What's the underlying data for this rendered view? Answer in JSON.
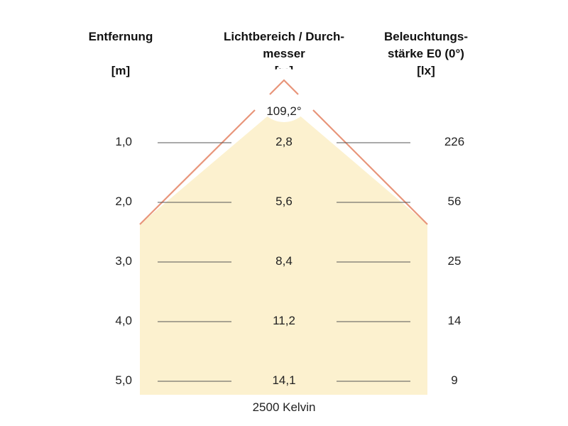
{
  "headers": {
    "distance": {
      "line1": "Entfernung",
      "line2": "",
      "unit": "[m]"
    },
    "diameter": {
      "line1": "Lichtbereich / Durch-",
      "line2": "messer",
      "unit": "[m]"
    },
    "illuminance": {
      "line1": "Beleuchtungs-",
      "line2": "stärke E0 (0°)",
      "unit": "[lx]"
    }
  },
  "beam_angle": "109,2°",
  "rows": [
    {
      "distance": "1,0",
      "diameter": "2,8",
      "illuminance": "226"
    },
    {
      "distance": "2,0",
      "diameter": "5,6",
      "illuminance": "56"
    },
    {
      "distance": "3,0",
      "diameter": "8,4",
      "illuminance": "25"
    },
    {
      "distance": "4,0",
      "diameter": "11,2",
      "illuminance": "14"
    },
    {
      "distance": "5,0",
      "diameter": "14,1",
      "illuminance": "9"
    }
  ],
  "color_temperature": "2500 Kelvin",
  "colors": {
    "beam_fill": "#fcf1cf",
    "beam_edge": "#e8957a",
    "guide_line": "#555555"
  }
}
